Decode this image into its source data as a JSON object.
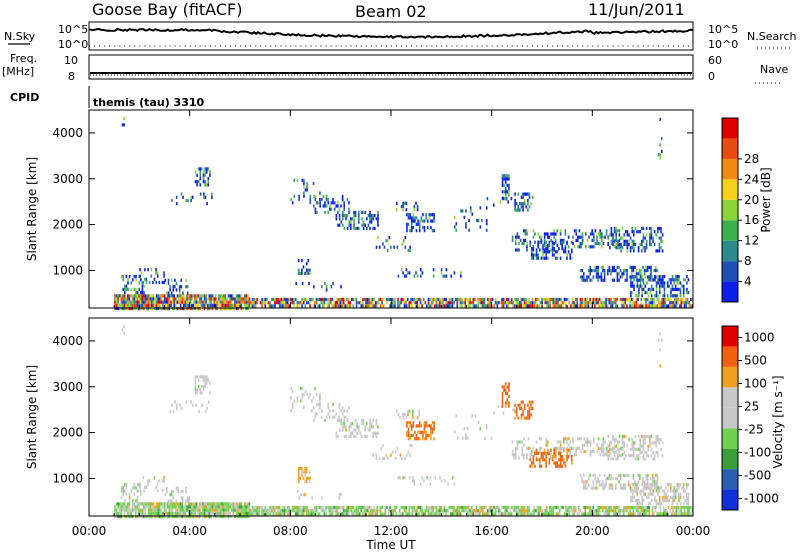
{
  "header": {
    "station": "Goose Bay (fitACF)",
    "beam": "Beam 02",
    "date": "11/Jun/2011"
  },
  "strips": {
    "nsky_label": "N.Sky",
    "nsearch_label": "N.Search",
    "freq_label_1": "Freq.",
    "freq_label_2": "[MHz]",
    "nave_label": "Nave",
    "cpid_label": "CPID",
    "cpid_value": "themis (tau) 3310",
    "noise_left_top": "10^5",
    "noise_left_bottom": "10^0",
    "noise_right_top": "10^5",
    "noise_right_bottom": "10^0",
    "freq_left_top": "10",
    "freq_left_bottom": "8",
    "nave_right_top": "60",
    "nave_right_bottom": "0"
  },
  "colors": {
    "power": [
      "#0a1ee8",
      "#1d4fb5",
      "#2d8a8a",
      "#3fb050",
      "#8bd43a",
      "#f3d11c",
      "#f08c14",
      "#e84b10",
      "#e00000"
    ],
    "velocity": [
      "#e00000",
      "#f06010",
      "#f0a020",
      "#c8c8c8",
      "#c8c8c8",
      "#70d050",
      "#3a9e3a",
      "#2a5fb0",
      "#1030d8"
    ]
  },
  "chart_data": {
    "type": "heatmap",
    "x_unit": "Time UT",
    "x_ticks": [
      "00:00",
      "04:00",
      "08:00",
      "12:00",
      "16:00",
      "20:00",
      "00:00"
    ],
    "xlabel": "Time UT",
    "panels": [
      {
        "name": "power",
        "ylabel": "Slant Range [km]",
        "ylim": [
          180,
          4500
        ],
        "y_ticks": [
          "1000",
          "2000",
          "3000",
          "4000"
        ],
        "colorbar_label": "Power [dB]",
        "colorbar_ticks": [
          "4",
          "8",
          "12",
          "16",
          "20",
          "24",
          "28"
        ]
      },
      {
        "name": "velocity",
        "ylabel": "Slant Range [km]",
        "ylim": [
          180,
          4500
        ],
        "y_ticks": [
          "1000",
          "2000",
          "3000",
          "4000"
        ],
        "colorbar_label": "Velocity [m s⁻¹]",
        "colorbar_ticks": [
          "-1000",
          "-500",
          "-100",
          "-25",
          "25",
          "100",
          "500",
          "1000"
        ]
      }
    ],
    "echo_regions": [
      {
        "t": [
          1.0,
          6.4
        ],
        "r": [
          200,
          480
        ],
        "density": 0.9
      },
      {
        "t": [
          6.4,
          24.0
        ],
        "r": [
          200,
          400
        ],
        "density": 0.75
      },
      {
        "t": [
          1.2,
          2.2
        ],
        "r": [
          500,
          900
        ],
        "density": 0.35
      },
      {
        "t": [
          2.0,
          3.0
        ],
        "r": [
          750,
          1050
        ],
        "density": 0.3
      },
      {
        "t": [
          3.0,
          4.0
        ],
        "r": [
          520,
          820
        ],
        "density": 0.3
      },
      {
        "t": [
          4.2,
          4.8
        ],
        "r": [
          2900,
          3250
        ],
        "density": 0.4
      },
      {
        "t": [
          3.2,
          4.9
        ],
        "r": [
          2480,
          2700
        ],
        "density": 0.15
      },
      {
        "t": [
          8.0,
          9.2
        ],
        "r": [
          2500,
          3000
        ],
        "density": 0.12
      },
      {
        "t": [
          8.9,
          10.3
        ],
        "r": [
          2250,
          2650
        ],
        "density": 0.3
      },
      {
        "t": [
          9.8,
          11.5
        ],
        "r": [
          1950,
          2300
        ],
        "density": 0.45
      },
      {
        "t": [
          8.3,
          8.8
        ],
        "r": [
          950,
          1250
        ],
        "density": 0.6
      },
      {
        "t": [
          8.2,
          10.2
        ],
        "r": [
          550,
          750
        ],
        "density": 0.12
      },
      {
        "t": [
          12.2,
          13.1
        ],
        "r": [
          2300,
          2500
        ],
        "density": 0.35
      },
      {
        "t": [
          12.6,
          13.7
        ],
        "r": [
          1900,
          2250
        ],
        "density": 0.5
      },
      {
        "t": [
          11.2,
          12.8
        ],
        "r": [
          1450,
          1750
        ],
        "density": 0.2
      },
      {
        "t": [
          12.2,
          14.8
        ],
        "r": [
          850,
          1050
        ],
        "density": 0.15
      },
      {
        "t": [
          14.5,
          16.0
        ],
        "r": [
          1850,
          2400
        ],
        "density": 0.12
      },
      {
        "t": [
          15.8,
          16.9
        ],
        "r": [
          2400,
          2600
        ],
        "density": 0.2
      },
      {
        "t": [
          16.9,
          17.6
        ],
        "r": [
          2350,
          2700
        ],
        "density": 0.45
      },
      {
        "t": [
          16.4,
          16.7
        ],
        "r": [
          2600,
          3100
        ],
        "density": 0.5
      },
      {
        "t": [
          16.8,
          19.2
        ],
        "r": [
          1450,
          1900
        ],
        "density": 0.3
      },
      {
        "t": [
          17.5,
          19.2
        ],
        "r": [
          1300,
          1650
        ],
        "density": 0.45
      },
      {
        "t": [
          19.2,
          21.2
        ],
        "r": [
          1550,
          1900
        ],
        "density": 0.35
      },
      {
        "t": [
          20.6,
          22.8
        ],
        "r": [
          1400,
          1950
        ],
        "density": 0.45
      },
      {
        "t": [
          19.5,
          22.6
        ],
        "r": [
          800,
          1100
        ],
        "density": 0.45
      },
      {
        "t": [
          21.5,
          23.8
        ],
        "r": [
          450,
          900
        ],
        "density": 0.55
      },
      {
        "t": [
          22.6,
          22.75
        ],
        "r": [
          3400,
          4400
        ],
        "density": 0.1
      },
      {
        "t": [
          1.3,
          1.4
        ],
        "r": [
          4150,
          4350
        ],
        "density": 0.6
      }
    ]
  }
}
